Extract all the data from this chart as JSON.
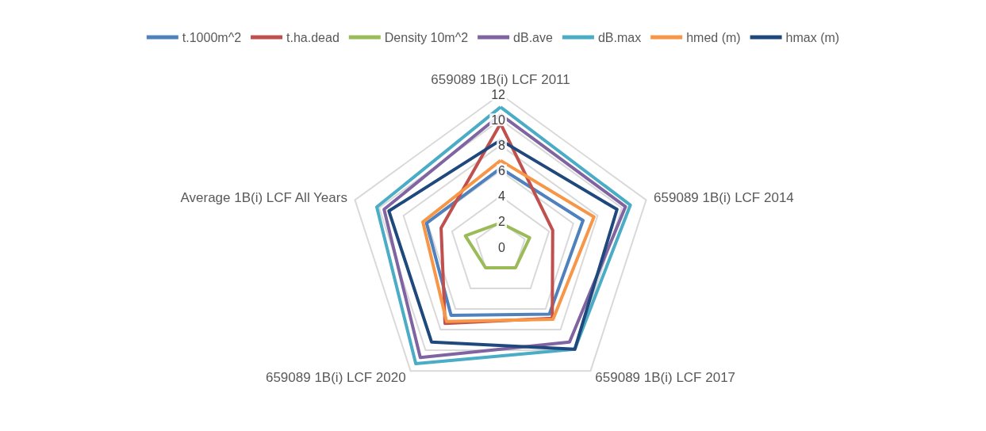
{
  "chart_data": {
    "type": "radar",
    "categories": [
      "659089 1B(i) LCF 2011",
      "659089 1B(i) LCF 2014",
      "659089 1B(i) LCF 2017",
      "659089 1B(i) LCF 2020",
      "Average 1B(i) LCF All Years"
    ],
    "series": [
      {
        "name": "t.1000m^2",
        "color": "#4f81bd",
        "values": [
          6.2,
          6.8,
          6.5,
          6.6,
          6.1
        ]
      },
      {
        "name": "t.ha.dead",
        "color": "#c0504d",
        "values": [
          9.7,
          4.3,
          6.9,
          7.4,
          4.9
        ]
      },
      {
        "name": "Density 10m^2",
        "color": "#9bbb59",
        "values": [
          1.9,
          2.4,
          2.0,
          2.0,
          2.9
        ]
      },
      {
        "name": "dB.ave",
        "color": "#8064a2",
        "values": [
          10.4,
          10.3,
          9.2,
          10.7,
          9.6
        ]
      },
      {
        "name": "dB.max",
        "color": "#4bacc6",
        "values": [
          11.0,
          10.7,
          9.9,
          11.3,
          10.2
        ]
      },
      {
        "name": "hmed (m)",
        "color": "#f79646",
        "values": [
          6.8,
          7.7,
          7.0,
          7.2,
          6.4
        ]
      },
      {
        "name": "hmax (m)",
        "color": "#1f497d",
        "values": [
          8.4,
          9.6,
          9.9,
          9.2,
          9.2
        ]
      }
    ],
    "ylim": [
      0,
      12
    ],
    "yticks": [
      0,
      2,
      4,
      6,
      8,
      10,
      12
    ],
    "grid": true,
    "legend": "top",
    "marker": "none",
    "line_style": "solid"
  }
}
